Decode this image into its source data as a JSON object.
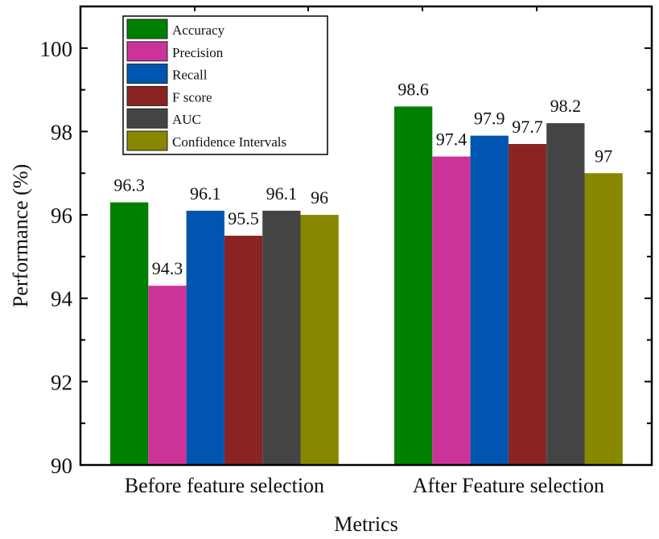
{
  "chart_data": {
    "type": "bar",
    "title": "",
    "xlabel": "Metrics",
    "ylabel": "Performance (%)",
    "ylim": [
      90,
      101
    ],
    "yticks": [
      90,
      92,
      94,
      96,
      98,
      100
    ],
    "categories": [
      "Before feature selection",
      "After Feature selection"
    ],
    "series": [
      {
        "name": "Accuracy",
        "color": "#008000",
        "values": [
          96.3,
          98.6
        ]
      },
      {
        "name": "Precision",
        "color": "#cc3399",
        "values": [
          94.3,
          97.4
        ]
      },
      {
        "name": "Recall",
        "color": "#0055b0",
        "values": [
          96.1,
          97.9
        ]
      },
      {
        "name": "F score",
        "color": "#8b2323",
        "values": [
          95.5,
          97.7
        ]
      },
      {
        "name": "AUC",
        "color": "#444444",
        "values": [
          96.1,
          98.2
        ]
      },
      {
        "name": "Confidence Intervals",
        "color": "#878700",
        "values": [
          96,
          97
        ]
      }
    ],
    "legend_position": "top-left",
    "grid": false
  }
}
